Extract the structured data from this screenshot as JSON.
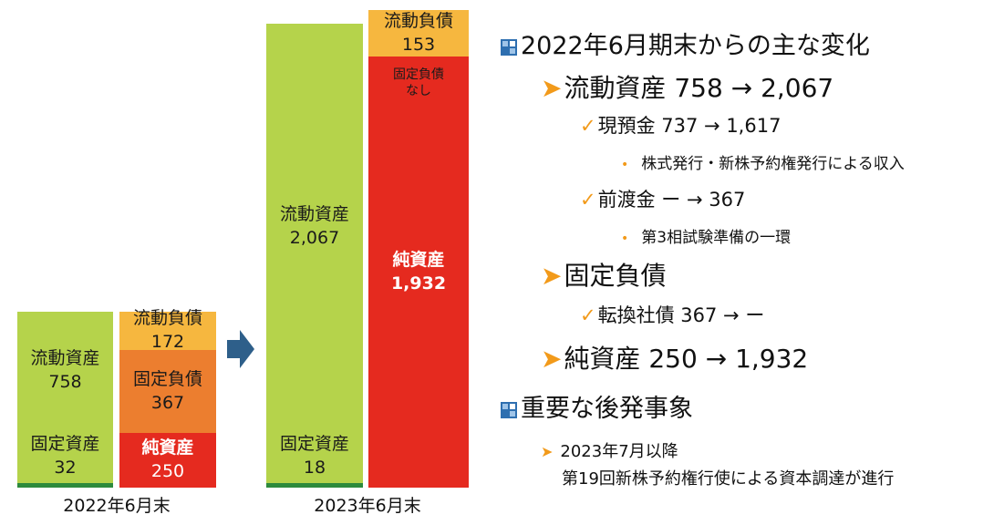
{
  "left_chart": {
    "assets": {
      "current": {
        "label": "流動資産",
        "value": "758"
      },
      "fixed": {
        "label": "固定資産",
        "value": "32"
      }
    },
    "liabilities": {
      "current": {
        "label": "流動負債",
        "value": "172"
      },
      "fixed": {
        "label": "固定負債",
        "value": "367"
      },
      "net": {
        "label": "純資産",
        "value": "250"
      }
    },
    "caption": "2022年6月末"
  },
  "right_chart": {
    "assets": {
      "current": {
        "label": "流動資産",
        "value": "2,067"
      },
      "fixed": {
        "label": "固定資産",
        "value": "18"
      }
    },
    "liabilities": {
      "current": {
        "label": "流動負債",
        "value": "153"
      },
      "fixed": {
        "label": "固定負債",
        "value": "なし"
      },
      "net": {
        "label": "純資産",
        "value": "1,932"
      }
    },
    "caption": "2023年6月末"
  },
  "colors": {
    "current_assets": "#b5d34b",
    "fixed_assets": "#2d8a3c",
    "current_liabilities": "#f6b73f",
    "fixed_liabilities": "#ec7e2f",
    "net_assets": "#e52a1f",
    "arrow": "#2e5f8a",
    "bullet_accent": "#f29a1a"
  },
  "icons": {
    "section_marker": "square-marker-icon",
    "transition_arrow": "right-arrow-icon"
  },
  "notes": {
    "section1": {
      "title": "2022年6月期末からの主な変化",
      "items": [
        {
          "text": "流動資産 758 → 2,067",
          "subitems": [
            {
              "text": "現預金 737 → 1,617",
              "detail": "株式発行・新株予約権発行による収入"
            },
            {
              "text": "前渡金 ー → 367",
              "detail": "第3相試験準備の一環"
            }
          ]
        },
        {
          "text": "固定負債",
          "subitems": [
            {
              "text": "転換社債 367 → ー"
            }
          ]
        },
        {
          "text": "純資産 250 → 1,932"
        }
      ]
    },
    "section2": {
      "title": "重要な後発事象",
      "items": [
        {
          "line1": "2023年7月以降",
          "line2": "第19回新株予約権行使による資本調達が進行"
        }
      ]
    }
  }
}
